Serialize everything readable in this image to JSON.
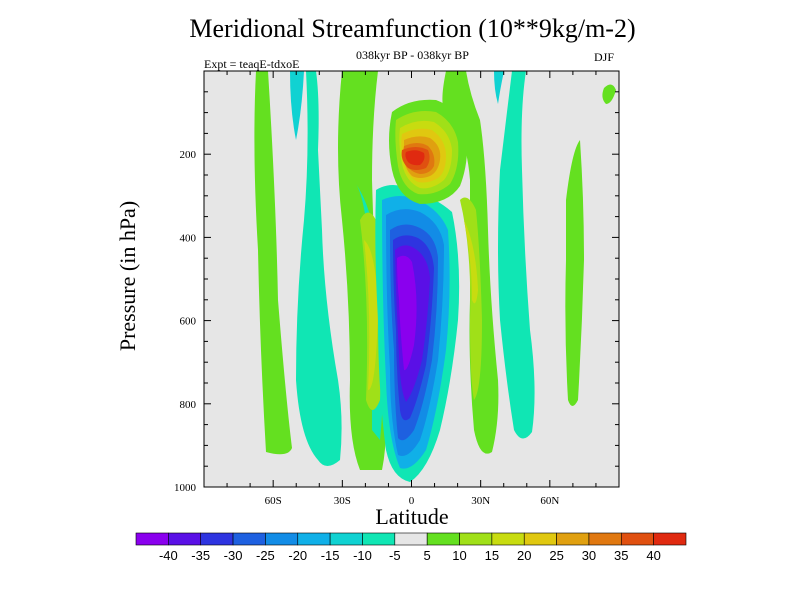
{
  "chart_data": {
    "type": "heatmap",
    "title": "Meridional Streamfunction (10**9kg/m-2)",
    "subtitle": "038kyr BP - 038kyr BP",
    "left_label": "Expt = teaqE-tdxoE",
    "right_label": "DJF",
    "xlabel": "Latitude",
    "ylabel": "Pressure (in hPa)",
    "x_ticks": [
      {
        "value": -60,
        "label": "60S"
      },
      {
        "value": -30,
        "label": "30S"
      },
      {
        "value": 0,
        "label": "0"
      },
      {
        "value": 30,
        "label": "30N"
      },
      {
        "value": 60,
        "label": "60N"
      }
    ],
    "y_ticks": [
      {
        "value": 200,
        "label": "200"
      },
      {
        "value": 400,
        "label": "400"
      },
      {
        "value": 600,
        "label": "600"
      },
      {
        "value": 800,
        "label": "800"
      },
      {
        "value": 1000,
        "label": "1000"
      }
    ],
    "xlim": [
      -90,
      90
    ],
    "ylim": [
      1000,
      0
    ],
    "colorbar": {
      "levels": [
        "-40",
        "-35",
        "-30",
        "-25",
        "-20",
        "-15",
        "-10",
        "-5",
        "5",
        "10",
        "15",
        "20",
        "25",
        "30",
        "35",
        "40"
      ],
      "colors": [
        "#8a00ee",
        "#5a10e6",
        "#2e34e0",
        "#1e60e0",
        "#128ce6",
        "#10b0e8",
        "#10d2d2",
        "#10e6b4",
        "#e6e6e6",
        "#64e020",
        "#a0e018",
        "#c8dc10",
        "#e0c810",
        "#e0a010",
        "#e07810",
        "#e05010",
        "#e02a10"
      ]
    },
    "features": [
      {
        "name": "northern-upper-positive-cell",
        "lat": 5,
        "pressure": 190,
        "value": 40
      },
      {
        "name": "equatorial-negative-column",
        "lat": -5,
        "pressure": 500,
        "value": -40
      },
      {
        "name": "southern-positive-band",
        "lat": -18,
        "pressure": 500,
        "value": 15
      },
      {
        "name": "northern-positive-band",
        "lat": 25,
        "pressure": 450,
        "value": 15
      }
    ]
  }
}
